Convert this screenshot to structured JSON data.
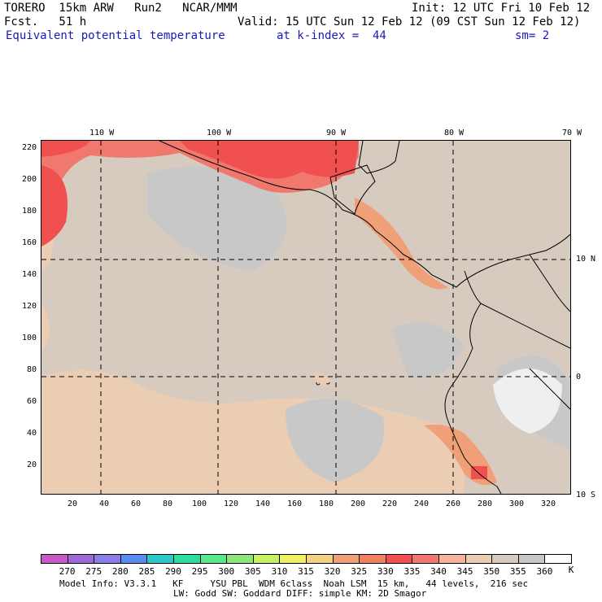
{
  "header": {
    "model": "TORERO  15km ARW   Run2   NCAR/MMM",
    "init": "Init: 12 UTC Fri 10 Feb 12",
    "fcst": "Fcst.   51 h",
    "valid": "Valid: 15 UTC Sun 12 Feb 12 (09 CST Sun 12 Feb 12)",
    "field": "Equivalent potential temperature",
    "level": "at k-index =  44",
    "smooth": "sm= 2"
  },
  "map": {
    "lon_labels": [
      "110 W",
      "100 W",
      "90 W",
      "80 W",
      "70 W"
    ],
    "lat_labels": [
      "10 N",
      "0",
      "10 S"
    ],
    "y_ticks": [
      "220",
      "200",
      "180",
      "160",
      "140",
      "120",
      "100",
      "80",
      "60",
      "40",
      "20"
    ],
    "x_ticks": [
      "20",
      "40",
      "60",
      "80",
      "100",
      "120",
      "140",
      "160",
      "180",
      "200",
      "220",
      "240",
      "260",
      "280",
      "300",
      "320"
    ]
  },
  "colorbar": {
    "levels": [
      "270",
      "275",
      "280",
      "285",
      "290",
      "295",
      "300",
      "305",
      "310",
      "315",
      "320",
      "325",
      "330",
      "335",
      "340",
      "345",
      "350",
      "355",
      "360"
    ],
    "unit": "K",
    "colors": [
      "#c85ac8",
      "#9f6ad8",
      "#8c7ce6",
      "#5a8cf0",
      "#2ec8c8",
      "#2cdca0",
      "#5ae68c",
      "#8ce678",
      "#c8f064",
      "#f0f064",
      "#f0d282",
      "#f0a078",
      "#f08060",
      "#f05050",
      "#f0786e",
      "#f5b49b",
      "#ebcdb4",
      "#d7cbc0",
      "#c8c8c8",
      "#ffffff"
    ]
  },
  "footer": {
    "line1": "Model Info: V3.3.1   KF     YSU PBL  WDM 6class  Noah LSM  15 km,   44 levels,  216 sec",
    "line2": "LW: Godd SW: Goddard DIFF: simple KM: 2D Smagor"
  }
}
